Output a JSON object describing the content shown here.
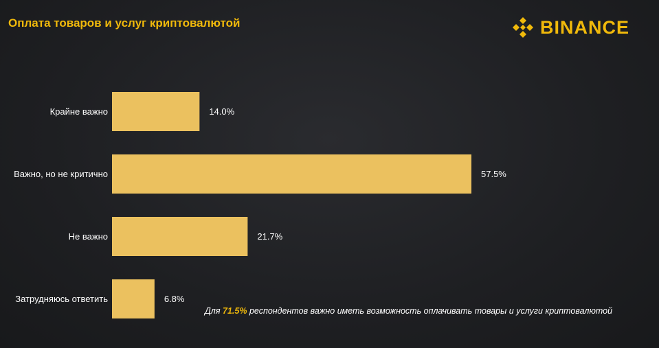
{
  "header": {
    "title": "Оплата товаров и услуг криптовалютой",
    "logo_text": "BINANCE"
  },
  "colors": {
    "accent": "#f0b90b",
    "bar": "#ebc15f",
    "background": "#1e1f22",
    "text": "#ffffff"
  },
  "chart_data": {
    "type": "bar",
    "orientation": "horizontal",
    "title": "Оплата товаров и услуг криптовалютой",
    "categories": [
      "Крайне важно",
      "Важно, но не критично",
      "Не важно",
      "Затрудняюсь ответить"
    ],
    "values": [
      14.0,
      57.5,
      21.7,
      6.8
    ],
    "value_labels": [
      "14.0%",
      "57.5%",
      "21.7%",
      "6.8%"
    ],
    "unit": "%",
    "xlim": [
      0,
      57.5
    ],
    "grid": false,
    "legend": "none"
  },
  "footnote": {
    "prefix": "Для ",
    "highlight": "71.5%",
    "suffix": " респондентов важно иметь возможность оплачивать товары и услуги криптовалютой"
  }
}
